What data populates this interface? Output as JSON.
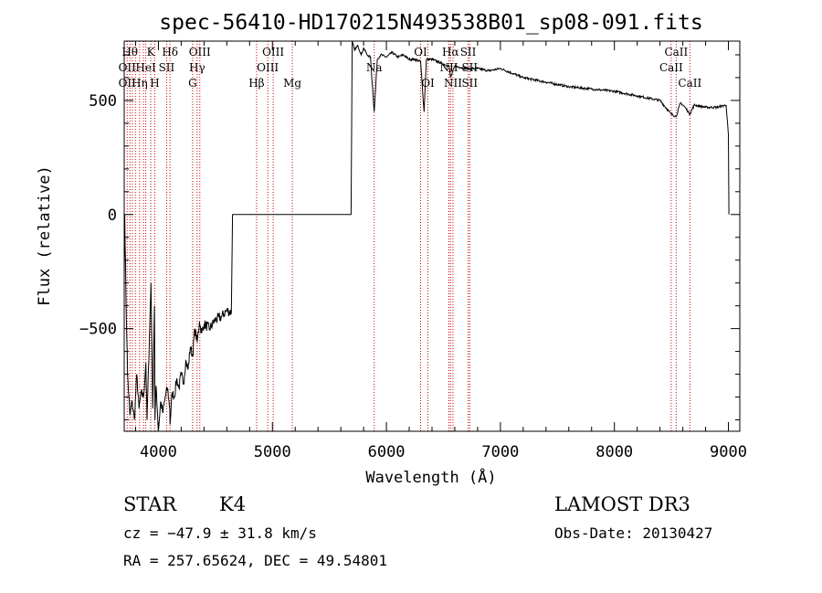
{
  "chart_data": {
    "type": "line",
    "title": "spec-56410-HD170215N493538B01_sp08-091.fits",
    "xlabel": "Wavelength (Å)",
    "ylabel": "Flux (relative)",
    "xlim": [
      3700,
      9100
    ],
    "ylim": [
      -950,
      760
    ],
    "xticks": [
      4000,
      5000,
      6000,
      7000,
      8000,
      9000
    ],
    "yticks": [
      -500,
      0,
      500
    ],
    "grid": false,
    "series": [
      {
        "x": [
          3700,
          3705,
          3715,
          3730,
          3750,
          3770,
          3790,
          3810,
          3830,
          3850,
          3870,
          3890,
          3900,
          3920,
          3935,
          3950,
          3965,
          3970,
          3980,
          3990,
          4000,
          4020,
          4040,
          4060,
          4080,
          4100,
          4102,
          4120,
          4140,
          4160,
          4180,
          4200,
          4220,
          4240,
          4260,
          4280,
          4300,
          4320,
          4340,
          4360,
          4380,
          4400,
          4450,
          4500,
          4550,
          4600,
          4640,
          4650,
          4700,
          4800,
          4900,
          5000,
          5200,
          5400,
          5600,
          5690,
          5700,
          5720,
          5750,
          5780,
          5800,
          5830,
          5860,
          5893,
          5920,
          5950,
          6000,
          6050,
          6100,
          6150,
          6200,
          6250,
          6300,
          6330,
          6350,
          6400,
          6450,
          6500,
          6550,
          6563,
          6600,
          6650,
          6700,
          6800,
          6900,
          7000,
          7200,
          7400,
          7600,
          7800,
          8000,
          8200,
          8400,
          8498,
          8542,
          8580,
          8620,
          8662,
          8700,
          8800,
          8900,
          8980,
          9000,
          9005
        ],
        "y": [
          -300,
          0,
          -350,
          -700,
          -880,
          -820,
          -900,
          -700,
          -850,
          -780,
          -800,
          -650,
          -900,
          -550,
          -300,
          -850,
          -400,
          -900,
          -750,
          -850,
          -950,
          -820,
          -870,
          -800,
          -760,
          -850,
          -920,
          -780,
          -800,
          -720,
          -760,
          -700,
          -740,
          -640,
          -680,
          -580,
          -620,
          -500,
          -560,
          -470,
          -520,
          -480,
          -500,
          -460,
          -450,
          -420,
          -430,
          0,
          0,
          0,
          0,
          0,
          0,
          0,
          0,
          0,
          760,
          720,
          740,
          700,
          730,
          700,
          690,
          450,
          680,
          700,
          690,
          710,
          690,
          700,
          680,
          680,
          670,
          450,
          680,
          680,
          670,
          660,
          650,
          600,
          650,
          645,
          640,
          640,
          630,
          640,
          600,
          580,
          560,
          550,
          540,
          520,
          500,
          440,
          430,
          490,
          470,
          440,
          480,
          470,
          470,
          480,
          350,
          0
        ]
      }
    ],
    "lines": [
      {
        "wl": 3726,
        "label": "OII"
      },
      {
        "wl": 3750,
        "label": "Hθ"
      },
      {
        "wl": 3771,
        "label": ""
      },
      {
        "wl": 3798,
        "label": ""
      },
      {
        "wl": 3835,
        "label": "Hη"
      },
      {
        "wl": 3869,
        "label": ""
      },
      {
        "wl": 3889,
        "label": "HeI"
      },
      {
        "wl": 3933,
        "label": "K"
      },
      {
        "wl": 3968,
        "label": "H"
      },
      {
        "wl": 4072,
        "label": "SII"
      },
      {
        "wl": 4102,
        "label": "Hδ"
      },
      {
        "wl": 4300,
        "label": "G"
      },
      {
        "wl": 4340,
        "label": "Hγ"
      },
      {
        "wl": 4363,
        "label": "OIII"
      },
      {
        "wl": 4861,
        "label": "Hβ"
      },
      {
        "wl": 4959,
        "label": "OIII"
      },
      {
        "wl": 5007,
        "label": "OIII"
      },
      {
        "wl": 5175,
        "label": "Mg"
      },
      {
        "wl": 5893,
        "label": "Na"
      },
      {
        "wl": 6300,
        "label": "OI"
      },
      {
        "wl": 6364,
        "label": "OI"
      },
      {
        "wl": 6548,
        "label": "NII"
      },
      {
        "wl": 6563,
        "label": "Hα"
      },
      {
        "wl": 6584,
        "label": "NII"
      },
      {
        "wl": 6717,
        "label": "SII"
      },
      {
        "wl": 6731,
        "label": "SII"
      },
      {
        "wl": 8498,
        "label": "CaII"
      },
      {
        "wl": 8542,
        "label": "CaII"
      },
      {
        "wl": 8662,
        "label": "CaII"
      }
    ],
    "line_label_rows": [
      {
        "text": "Hθ",
        "wl": 3750,
        "row": 0
      },
      {
        "text": "K",
        "wl": 3933,
        "row": 0
      },
      {
        "text": "Hδ",
        "wl": 4102,
        "row": 0
      },
      {
        "text": "OIII",
        "wl": 4363,
        "row": 0
      },
      {
        "text": "OIII",
        "wl": 5007,
        "row": 0
      },
      {
        "text": "OI",
        "wl": 6300,
        "row": 0
      },
      {
        "text": "Hα",
        "wl": 6563,
        "row": 0
      },
      {
        "text": "SII",
        "wl": 6717,
        "row": 0
      },
      {
        "text": "CaII",
        "wl": 8542,
        "row": 0
      },
      {
        "text": "OII",
        "wl": 3726,
        "row": 1
      },
      {
        "text": "HeI",
        "wl": 3889,
        "row": 1
      },
      {
        "text": "SII",
        "wl": 4072,
        "row": 1
      },
      {
        "text": "Hγ",
        "wl": 4340,
        "row": 1
      },
      {
        "text": "OIII",
        "wl": 4959,
        "row": 1
      },
      {
        "text": "Na",
        "wl": 5893,
        "row": 1
      },
      {
        "text": "NII",
        "wl": 6548,
        "row": 1
      },
      {
        "text": "SII",
        "wl": 6731,
        "row": 1
      },
      {
        "text": "CaII",
        "wl": 8498,
        "row": 1
      },
      {
        "text": "OII",
        "wl": 3726,
        "row": 2
      },
      {
        "text": "Hη",
        "wl": 3835,
        "row": 2
      },
      {
        "text": "H",
        "wl": 3968,
        "row": 2
      },
      {
        "text": "G",
        "wl": 4300,
        "row": 2
      },
      {
        "text": "Hβ",
        "wl": 4861,
        "row": 2
      },
      {
        "text": "Mg",
        "wl": 5175,
        "row": 2
      },
      {
        "text": "OI",
        "wl": 6364,
        "row": 2
      },
      {
        "text": "NII",
        "wl": 6584,
        "row": 2
      },
      {
        "text": "SII",
        "wl": 6731,
        "row": 2
      },
      {
        "text": "CaII",
        "wl": 8662,
        "row": 2
      }
    ],
    "line_color": "#cc0000",
    "trace_color": "#000000"
  },
  "info": {
    "class": "STAR",
    "subclass": "K4",
    "survey": "LAMOST DR3",
    "cz": "cz = −47.9 ± 31.8 km/s",
    "obs_date": "Obs-Date: 20130427",
    "coords": "RA = 257.65624, DEC =  49.54801"
  }
}
